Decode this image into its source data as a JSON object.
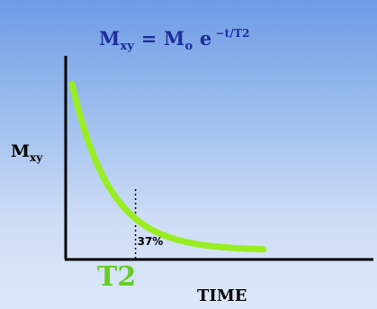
{
  "chart_data": {
    "type": "line",
    "title": {
      "lhs": "M",
      "lhs_sub": "xy",
      "eq": "=",
      "rhs": "M",
      "rhs_sub": "o",
      "base": "e",
      "exp": "−t/T2"
    },
    "ylabel": {
      "main": "M",
      "sub": "xy"
    },
    "xlabel": "TIME",
    "marker_label": "T2",
    "annotation": "37%",
    "series": [
      {
        "values_fn": "exp",
        "x_start": 0.0,
        "x_end": 5.0,
        "y0": 1.0,
        "T2": 1.0,
        "marker_x": 1.0,
        "marker_y": 0.37
      }
    ],
    "xlim": [
      0,
      5.8
    ],
    "ylim": [
      0,
      1.0
    ],
    "grid": false,
    "colors": {
      "curve": "#99ee22",
      "title": "#1e2e9c",
      "marker_label": "#66cc22",
      "axes": "#000000"
    }
  }
}
